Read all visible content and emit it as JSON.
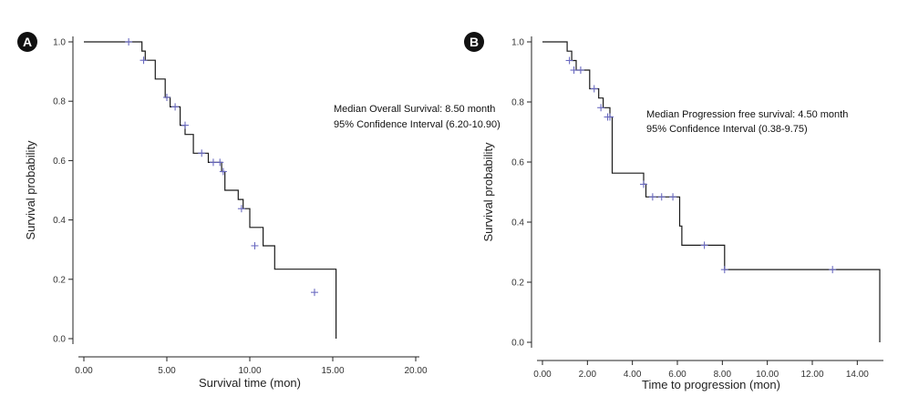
{
  "chart_data": [
    {
      "panel_label": "A",
      "type": "line",
      "step": "post",
      "xlabel": "Survival time (mon)",
      "ylabel": "Survival probability",
      "xlim": [
        0,
        20
      ],
      "ylim": [
        0,
        1
      ],
      "xticks": [
        0,
        5,
        10,
        15,
        20
      ],
      "xtick_labels": [
        "0.00",
        "5.00",
        "10.00",
        "15.00",
        "20.00"
      ],
      "yticks": [
        0,
        0.2,
        0.4,
        0.6,
        0.8,
        1.0
      ],
      "ytick_labels": [
        "0.0",
        "0.2",
        "0.4",
        "0.6",
        "0.8",
        "1.0"
      ],
      "annotation": [
        "Median Overall Survival: 8.50 month",
        "95% Confidence Interval (6.20-10.90)"
      ],
      "curve_color": "#1a1a1a",
      "censor_color": "#6a6ac0",
      "series": [
        {
          "x": [
            0,
            3.5,
            3.7,
            4.3,
            4.9,
            5.2,
            5.8,
            6.1,
            6.6,
            7.5,
            8.3,
            8.5,
            9.3,
            9.6,
            10.0,
            10.8,
            11.5,
            15.2,
            15.2
          ],
          "y": [
            1.0,
            0.969,
            0.938,
            0.875,
            0.813,
            0.781,
            0.719,
            0.688,
            0.625,
            0.594,
            0.563,
            0.5,
            0.469,
            0.438,
            0.375,
            0.313,
            0.234,
            0.156,
            0.0
          ]
        }
      ],
      "censored": [
        {
          "x": 2.7,
          "y": 1.0
        },
        {
          "x": 3.6,
          "y": 0.938
        },
        {
          "x": 5.0,
          "y": 0.813
        },
        {
          "x": 5.5,
          "y": 0.781
        },
        {
          "x": 6.1,
          "y": 0.719
        },
        {
          "x": 7.1,
          "y": 0.625
        },
        {
          "x": 7.8,
          "y": 0.594
        },
        {
          "x": 8.2,
          "y": 0.594
        },
        {
          "x": 8.4,
          "y": 0.563
        },
        {
          "x": 9.5,
          "y": 0.438
        },
        {
          "x": 10.3,
          "y": 0.313
        },
        {
          "x": 13.9,
          "y": 0.156
        }
      ]
    },
    {
      "panel_label": "B",
      "type": "line",
      "step": "post",
      "xlabel": "Time to progression (mon)",
      "ylabel": "Survival probability",
      "xlim": [
        0,
        15
      ],
      "ylim": [
        0,
        1
      ],
      "xticks": [
        0,
        2,
        4,
        6,
        8,
        10,
        12,
        14
      ],
      "xtick_labels": [
        "0.00",
        "2.00",
        "4.00",
        "6.00",
        "8.00",
        "10.00",
        "12.00",
        "14.00"
      ],
      "yticks": [
        0,
        0.2,
        0.4,
        0.6,
        0.8,
        1.0
      ],
      "ytick_labels": [
        "0.0",
        "0.2",
        "0.4",
        "0.6",
        "0.8",
        "1.0"
      ],
      "annotation": [
        "Median Progression free survival: 4.50 month",
        "95% Confidence Interval (0.38-9.75)"
      ],
      "curve_color": "#1a1a1a",
      "censor_color": "#6a6ac0",
      "series": [
        {
          "x": [
            0,
            1.1,
            1.3,
            1.5,
            2.1,
            2.5,
            2.7,
            3.0,
            3.1,
            4.5,
            4.6,
            6.0,
            6.1,
            6.2,
            8.1,
            15.0,
            15.0
          ],
          "y": [
            1.0,
            0.969,
            0.938,
            0.906,
            0.844,
            0.813,
            0.781,
            0.75,
            0.563,
            0.526,
            0.484,
            0.484,
            0.387,
            0.323,
            0.242,
            0.242,
            0.0
          ]
        }
      ],
      "censored": [
        {
          "x": 1.2,
          "y": 0.938
        },
        {
          "x": 1.4,
          "y": 0.906
        },
        {
          "x": 1.7,
          "y": 0.906
        },
        {
          "x": 2.3,
          "y": 0.844
        },
        {
          "x": 2.6,
          "y": 0.781
        },
        {
          "x": 2.9,
          "y": 0.75
        },
        {
          "x": 3.0,
          "y": 0.75
        },
        {
          "x": 4.5,
          "y": 0.526
        },
        {
          "x": 4.9,
          "y": 0.484
        },
        {
          "x": 5.3,
          "y": 0.484
        },
        {
          "x": 5.8,
          "y": 0.484
        },
        {
          "x": 7.2,
          "y": 0.323
        },
        {
          "x": 8.1,
          "y": 0.242
        },
        {
          "x": 12.9,
          "y": 0.242
        }
      ]
    }
  ]
}
